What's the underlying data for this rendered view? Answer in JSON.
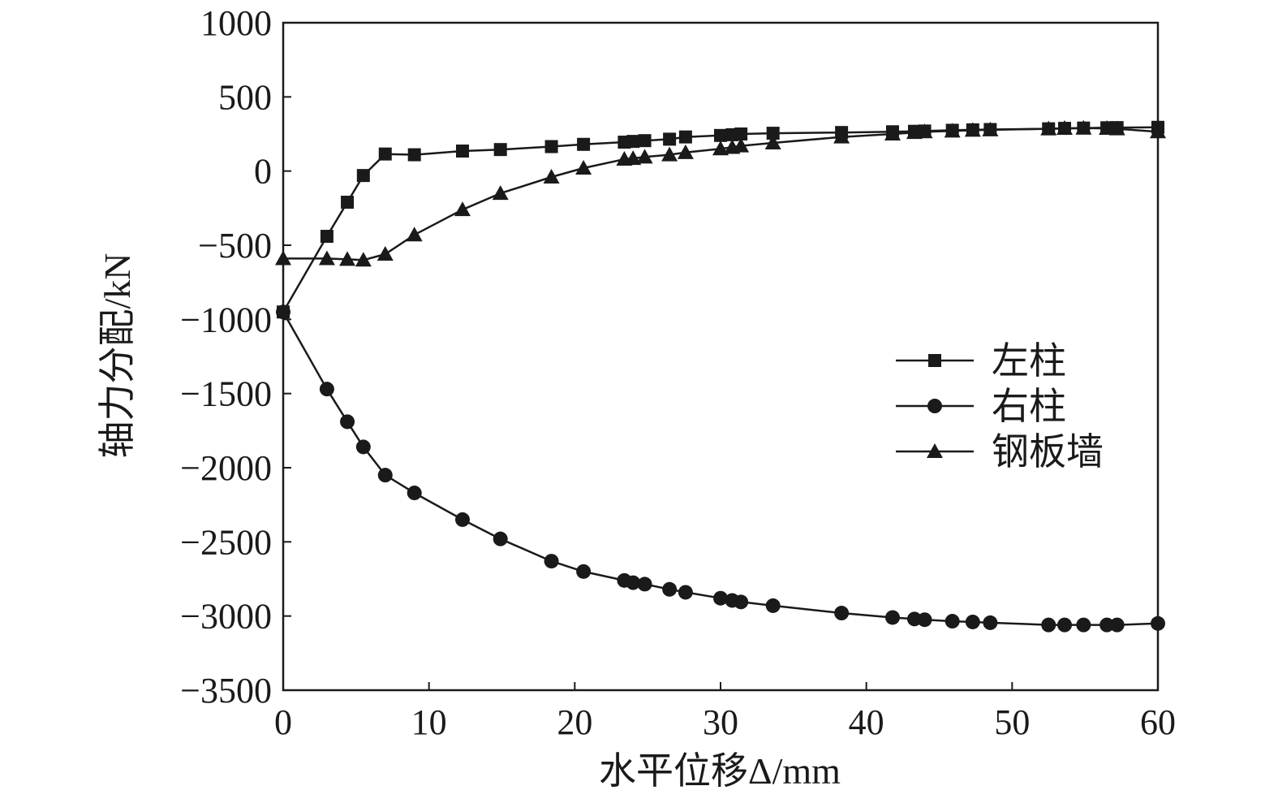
{
  "chart_data": {
    "type": "line",
    "xlabel": "水平位移Δ/mm",
    "ylabel": "轴力分配/kN",
    "xlim": [
      0,
      60
    ],
    "ylim": [
      -3500,
      1000
    ],
    "xticks": [
      "0",
      "10",
      "20",
      "30",
      "40",
      "50",
      "60"
    ],
    "yticks": [
      "1000",
      "500",
      "0",
      "−500",
      "−1000",
      "−1500",
      "−2000",
      "−2500",
      "−3000",
      "−3500"
    ],
    "grid": false,
    "legend_position": "right",
    "series": [
      {
        "name": "左柱",
        "marker": "square",
        "x": [
          0,
          3,
          4.4,
          5.5,
          7,
          9,
          12.3,
          14.9,
          18.4,
          20.6,
          23.4,
          24,
          24.8,
          26.5,
          27.6,
          30,
          30.8,
          31.4,
          33.6,
          38.3,
          41.8,
          43.3,
          44,
          45.9,
          47.3,
          48.5,
          52.5,
          53.6,
          54.9,
          56.5,
          57.2,
          60
        ],
        "y": [
          -950,
          -440,
          -210,
          -30,
          115,
          110,
          135,
          145,
          165,
          180,
          195,
          200,
          205,
          215,
          230,
          240,
          245,
          250,
          255,
          260,
          265,
          268,
          270,
          275,
          278,
          280,
          285,
          288,
          290,
          292,
          293,
          295
        ]
      },
      {
        "name": "右柱",
        "marker": "circle",
        "x": [
          0,
          3,
          4.4,
          5.5,
          7,
          9,
          12.3,
          14.9,
          18.4,
          20.6,
          23.4,
          24,
          24.8,
          26.5,
          27.6,
          30,
          30.8,
          31.4,
          33.6,
          38.3,
          41.8,
          43.3,
          44,
          45.9,
          47.3,
          48.5,
          52.5,
          53.6,
          54.9,
          56.5,
          57.2,
          60
        ],
        "y": [
          -950,
          -1470,
          -1690,
          -1860,
          -2050,
          -2170,
          -2350,
          -2480,
          -2630,
          -2700,
          -2760,
          -2775,
          -2785,
          -2820,
          -2840,
          -2880,
          -2895,
          -2905,
          -2930,
          -2980,
          -3010,
          -3020,
          -3025,
          -3035,
          -3040,
          -3045,
          -3060,
          -3060,
          -3060,
          -3060,
          -3060,
          -3050
        ]
      },
      {
        "name": "钢板墙",
        "marker": "triangle",
        "x": [
          0,
          3,
          4.4,
          5.5,
          7,
          9,
          12.3,
          14.9,
          18.4,
          20.6,
          23.4,
          24,
          24.8,
          26.5,
          27.6,
          30,
          30.8,
          31.4,
          33.6,
          38.3,
          41.8,
          43.3,
          44,
          45.9,
          47.3,
          48.5,
          52.5,
          53.6,
          54.9,
          56.5,
          57.2,
          60
        ],
        "y": [
          -590,
          -590,
          -595,
          -600,
          -560,
          -430,
          -260,
          -150,
          -40,
          20,
          80,
          85,
          95,
          110,
          125,
          150,
          160,
          170,
          190,
          230,
          250,
          260,
          265,
          270,
          275,
          278,
          285,
          288,
          290,
          288,
          285,
          265
        ]
      }
    ]
  }
}
